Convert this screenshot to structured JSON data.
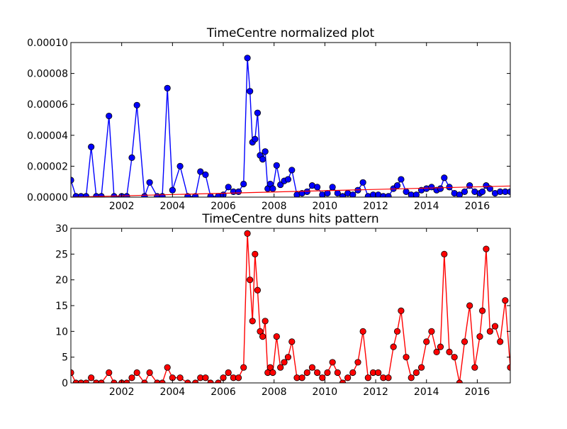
{
  "chart_data": [
    {
      "type": "line",
      "title": "TimeCentre normalized plot",
      "xlabel": "",
      "ylabel": "",
      "xlim": [
        2000.0,
        2017.3
      ],
      "ylim": [
        0,
        0.0001
      ],
      "xticks": [
        2002,
        2004,
        2006,
        2008,
        2010,
        2012,
        2014,
        2016
      ],
      "xtick_labels": [
        "2002",
        "2004",
        "2006",
        "2008",
        "2010",
        "2012",
        "2014",
        "2016"
      ],
      "yticks": [
        0,
        2e-05,
        4e-05,
        6e-05,
        8e-05,
        0.0001
      ],
      "ytick_labels": [
        "0.00000",
        "0.00002",
        "0.00004",
        "0.00006",
        "0.00008",
        "0.00010"
      ],
      "grid": false,
      "colors": {
        "series": "#0000ff",
        "trend": "#ff0000"
      },
      "series": [
        {
          "x": [
            2000.0,
            2000.2,
            2000.4,
            2000.6,
            2000.8,
            2001.0,
            2001.2,
            2001.5,
            2001.7,
            2002.0,
            2002.2,
            2002.4,
            2002.6,
            2002.9,
            2003.1,
            2003.4,
            2003.6,
            2003.8,
            2004.0,
            2004.3,
            2004.6,
            2004.9,
            2005.1,
            2005.3,
            2005.5,
            2005.8,
            2006.0,
            2006.2,
            2006.4,
            2006.6,
            2006.8,
            2006.95,
            2007.05,
            2007.15,
            2007.25,
            2007.35,
            2007.45,
            2007.55,
            2007.65,
            2007.75,
            2007.85,
            2007.95,
            2008.1,
            2008.25,
            2008.4,
            2008.55,
            2008.7,
            2008.9,
            2009.1,
            2009.3,
            2009.5,
            2009.7,
            2009.9,
            2010.1,
            2010.3,
            2010.5,
            2010.7,
            2010.9,
            2011.1,
            2011.3,
            2011.5,
            2011.7,
            2011.9,
            2012.1,
            2012.3,
            2012.5,
            2012.7,
            2012.85,
            2013.0,
            2013.2,
            2013.4,
            2013.6,
            2013.8,
            2014.0,
            2014.2,
            2014.4,
            2014.55,
            2014.7,
            2014.9,
            2015.1,
            2015.3,
            2015.5,
            2015.7,
            2015.9,
            2016.1,
            2016.2,
            2016.35,
            2016.5,
            2016.7,
            2016.9,
            2017.1,
            2017.3
          ],
          "y": [
            1.1e-05,
            5e-07,
            5e-07,
            5e-07,
            3.25e-05,
            5e-07,
            5e-07,
            5.25e-05,
            5e-07,
            5e-07,
            5e-07,
            2.55e-05,
            5.95e-05,
            5e-07,
            9.5e-06,
            5e-07,
            5e-07,
            7.05e-05,
            4.5e-06,
            2e-05,
            5e-07,
            5e-07,
            1.65e-05,
            1.45e-05,
            5e-07,
            5e-07,
            1.5e-06,
            6.5e-06,
            3.5e-06,
            3.5e-06,
            8.5e-06,
            9e-05,
            6.85e-05,
            3.55e-05,
            3.75e-05,
            5.45e-05,
            2.7e-05,
            2.45e-05,
            2.95e-05,
            5.5e-06,
            8.5e-06,
            5.5e-06,
            2.05e-05,
            8e-06,
            1.05e-05,
            1.15e-05,
            1.75e-05,
            1.5e-06,
            2.5e-06,
            3.5e-06,
            7.5e-06,
            6.5e-06,
            1.5e-06,
            2.5e-06,
            6.5e-06,
            2.5e-06,
            5e-07,
            2.5e-06,
            1.5e-06,
            4.5e-06,
            9.5e-06,
            5e-07,
            1.5e-06,
            1.5e-06,
            5e-07,
            5e-07,
            5.5e-06,
            7.5e-06,
            1.15e-05,
            3.5e-06,
            1.5e-06,
            1.5e-06,
            4.5e-06,
            5.5e-06,
            6.5e-06,
            4.5e-06,
            5.5e-06,
            1.25e-05,
            6.5e-06,
            2.5e-06,
            1.5e-06,
            3.5e-06,
            7.5e-06,
            3.5e-06,
            2.5e-06,
            3.5e-06,
            7.5e-06,
            5.5e-06,
            2.5e-06,
            3.5e-06,
            3.5e-06,
            3.5e-06
          ]
        },
        {
          "x": [
            2000.0,
            2017.3
          ],
          "y": [
            0.0,
            7.2e-06
          ]
        }
      ]
    },
    {
      "type": "line",
      "title": "TimeCentre duns hits pattern",
      "xlabel": "",
      "ylabel": "",
      "xlim": [
        2000.0,
        2017.3
      ],
      "ylim": [
        0,
        30
      ],
      "xticks": [
        2002,
        2004,
        2006,
        2008,
        2010,
        2012,
        2014,
        2016
      ],
      "xtick_labels": [
        "2002",
        "2004",
        "2006",
        "2008",
        "2010",
        "2012",
        "2014",
        "2016"
      ],
      "yticks": [
        0,
        5,
        10,
        15,
        20,
        25,
        30
      ],
      "ytick_labels": [
        "0",
        "5",
        "10",
        "15",
        "20",
        "25",
        "30"
      ],
      "grid": false,
      "colors": {
        "series": "#ff0000",
        "edge": "#000000"
      },
      "series": [
        {
          "x": [
            2000.0,
            2000.2,
            2000.4,
            2000.6,
            2000.8,
            2001.0,
            2001.2,
            2001.5,
            2001.7,
            2002.0,
            2002.2,
            2002.4,
            2002.6,
            2002.9,
            2003.1,
            2003.4,
            2003.6,
            2003.8,
            2004.0,
            2004.3,
            2004.6,
            2004.9,
            2005.1,
            2005.3,
            2005.5,
            2005.8,
            2006.0,
            2006.2,
            2006.4,
            2006.6,
            2006.8,
            2006.95,
            2007.05,
            2007.15,
            2007.25,
            2007.35,
            2007.45,
            2007.55,
            2007.65,
            2007.75,
            2007.85,
            2007.95,
            2008.1,
            2008.25,
            2008.4,
            2008.55,
            2008.7,
            2008.9,
            2009.1,
            2009.3,
            2009.5,
            2009.7,
            2009.9,
            2010.1,
            2010.3,
            2010.5,
            2010.7,
            2010.9,
            2011.1,
            2011.3,
            2011.5,
            2011.7,
            2011.9,
            2012.1,
            2012.3,
            2012.5,
            2012.7,
            2012.85,
            2013.0,
            2013.2,
            2013.4,
            2013.6,
            2013.8,
            2014.0,
            2014.2,
            2014.4,
            2014.55,
            2014.7,
            2014.9,
            2015.1,
            2015.3,
            2015.5,
            2015.7,
            2015.9,
            2016.1,
            2016.2,
            2016.35,
            2016.5,
            2016.7,
            2016.9,
            2017.1,
            2017.3
          ],
          "y": [
            2,
            0,
            0,
            0,
            1,
            0,
            0,
            2,
            0,
            0,
            0,
            1,
            2,
            0,
            2,
            0,
            0,
            3,
            1,
            1,
            0,
            0,
            1,
            1,
            0,
            0,
            1,
            2,
            1,
            1,
            3,
            29,
            20,
            12,
            25,
            18,
            10,
            9,
            12,
            2,
            3,
            2,
            9,
            3,
            4,
            5,
            8,
            1,
            1,
            2,
            3,
            2,
            1,
            2,
            4,
            2,
            0,
            1,
            2,
            4,
            10,
            1,
            2,
            2,
            1,
            1,
            7,
            10,
            14,
            5,
            1,
            2,
            3,
            8,
            10,
            6,
            7,
            25,
            6,
            5,
            0,
            8,
            15,
            3,
            9,
            14,
            26,
            10,
            11,
            8,
            16,
            3
          ]
        }
      ]
    }
  ]
}
